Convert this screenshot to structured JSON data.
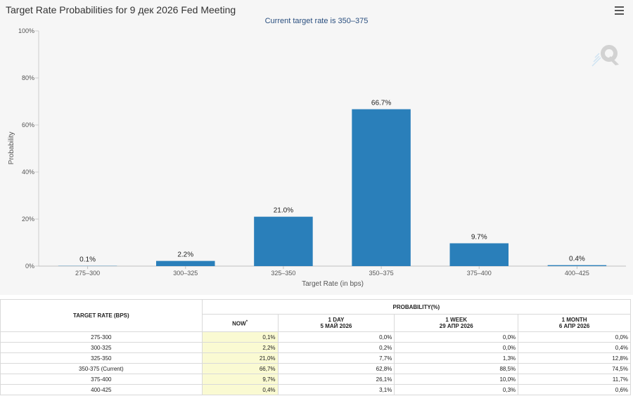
{
  "chart_data": {
    "type": "bar",
    "title": "Target Rate Probabilities for 9 дек 2026 Fed Meeting",
    "subtitle": "Current target rate is 350–375",
    "categories": [
      "275–300",
      "300–325",
      "325–350",
      "350–375",
      "375–400",
      "400–425"
    ],
    "values": [
      0.1,
      2.2,
      21.0,
      66.7,
      9.7,
      0.4
    ],
    "data_labels": [
      "0.1%",
      "2.2%",
      "21.0%",
      "66.7%",
      "9.7%",
      "0.4%"
    ],
    "xlabel": "Target Rate (in bps)",
    "ylabel": "Probability",
    "ylim": [
      0,
      100
    ],
    "yticks": [
      0,
      20,
      40,
      60,
      80,
      100
    ],
    "ytick_labels": [
      "0%",
      "20%",
      "40%",
      "60%",
      "80%",
      "100%"
    ],
    "grid": false,
    "bar_color": "#2a7fba"
  },
  "toolbar": {
    "menu_icon": "hamburger-menu-icon"
  },
  "watermark": {
    "icon": "q-logo-icon"
  },
  "table": {
    "header_target": "TARGET RATE (BPS)",
    "header_probability": "PROBABILITY(%)",
    "columns": [
      {
        "label": "NOW",
        "marker": "*",
        "sub": ""
      },
      {
        "label": "1 DAY",
        "sub": "5 МАЙ 2026"
      },
      {
        "label": "1 WEEK",
        "sub": "29 АПР 2026"
      },
      {
        "label": "1 MONTH",
        "sub": "6 АПР 2026"
      }
    ],
    "rows": [
      {
        "rate": "275-300",
        "values": [
          "0,1%",
          "0,0%",
          "0,0%",
          "0,0%"
        ]
      },
      {
        "rate": "300-325",
        "values": [
          "2,2%",
          "0,2%",
          "0,0%",
          "0,4%"
        ]
      },
      {
        "rate": "325-350",
        "values": [
          "21,0%",
          "7,7%",
          "1,3%",
          "12,8%"
        ]
      },
      {
        "rate": "350-375 (Current)",
        "values": [
          "66,7%",
          "62,8%",
          "88,5%",
          "74,5%"
        ]
      },
      {
        "rate": "375-400",
        "values": [
          "9,7%",
          "26,1%",
          "10,0%",
          "11,7%"
        ]
      },
      {
        "rate": "400-425",
        "values": [
          "0,4%",
          "3,1%",
          "0,3%",
          "0,6%"
        ]
      }
    ]
  }
}
